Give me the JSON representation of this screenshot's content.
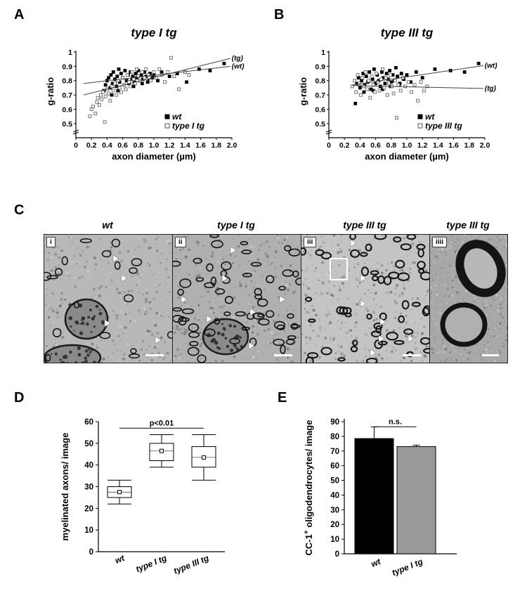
{
  "panels": {
    "A": "A",
    "B": "B",
    "C": "C",
    "D": "D",
    "E": "E"
  },
  "chart_data": [
    {
      "id": "A",
      "type": "scatter",
      "title": "type I tg",
      "xlabel": "axon diameter (µm)",
      "ylabel": "g-ratio",
      "xlim": [
        0,
        2.0
      ],
      "ylim": [
        0.45,
        1.0
      ],
      "xticks": [
        "0",
        "0.2",
        "0.4",
        "0.6",
        "0.8",
        "1.0",
        "1.2",
        "1.4",
        "1.6",
        "1.8",
        "2.0"
      ],
      "yticks": [
        "0.5",
        "0.6",
        "0.7",
        "0.8",
        "0.9",
        "1"
      ],
      "series": [
        {
          "name": "wt",
          "marker": "filled-square",
          "points": [
            [
              0.36,
              0.73
            ],
            [
              0.38,
              0.77
            ],
            [
              0.4,
              0.8
            ],
            [
              0.42,
              0.82
            ],
            [
              0.44,
              0.75
            ],
            [
              0.45,
              0.84
            ],
            [
              0.47,
              0.78
            ],
            [
              0.48,
              0.86
            ],
            [
              0.5,
              0.81
            ],
            [
              0.52,
              0.76
            ],
            [
              0.53,
              0.83
            ],
            [
              0.55,
              0.88
            ],
            [
              0.56,
              0.79
            ],
            [
              0.58,
              0.85
            ],
            [
              0.6,
              0.82
            ],
            [
              0.62,
              0.77
            ],
            [
              0.63,
              0.87
            ],
            [
              0.65,
              0.8
            ],
            [
              0.67,
              0.84
            ],
            [
              0.68,
              0.78
            ],
            [
              0.7,
              0.86
            ],
            [
              0.72,
              0.81
            ],
            [
              0.73,
              0.83
            ],
            [
              0.75,
              0.79
            ],
            [
              0.77,
              0.85
            ],
            [
              0.78,
              0.82
            ],
            [
              0.8,
              0.87
            ],
            [
              0.82,
              0.8
            ],
            [
              0.84,
              0.84
            ],
            [
              0.86,
              0.81
            ],
            [
              0.88,
              0.86
            ],
            [
              0.9,
              0.83
            ],
            [
              0.92,
              0.79
            ],
            [
              0.95,
              0.85
            ],
            [
              0.98,
              0.82
            ],
            [
              1.0,
              0.84
            ],
            [
              1.05,
              0.8
            ],
            [
              1.1,
              0.86
            ],
            [
              1.2,
              0.83
            ],
            [
              1.3,
              0.85
            ],
            [
              1.42,
              0.79
            ],
            [
              1.58,
              0.88
            ],
            [
              1.72,
              0.87
            ],
            [
              1.9,
              0.92
            ],
            [
              0.46,
              0.7
            ],
            [
              0.54,
              0.73
            ],
            [
              0.64,
              0.74
            ],
            [
              0.74,
              0.76
            ],
            [
              0.85,
              0.78
            ],
            [
              0.94,
              0.8
            ]
          ]
        },
        {
          "name": "type I tg",
          "marker": "open-square",
          "points": [
            [
              0.18,
              0.55
            ],
            [
              0.2,
              0.6
            ],
            [
              0.22,
              0.62
            ],
            [
              0.25,
              0.57
            ],
            [
              0.27,
              0.65
            ],
            [
              0.28,
              0.68
            ],
            [
              0.3,
              0.63
            ],
            [
              0.32,
              0.7
            ],
            [
              0.33,
              0.67
            ],
            [
              0.35,
              0.72
            ],
            [
              0.37,
              0.51
            ],
            [
              0.38,
              0.69
            ],
            [
              0.4,
              0.74
            ],
            [
              0.42,
              0.71
            ],
            [
              0.44,
              0.66
            ],
            [
              0.46,
              0.76
            ],
            [
              0.48,
              0.73
            ],
            [
              0.5,
              0.78
            ],
            [
              0.52,
              0.7
            ],
            [
              0.54,
              0.8
            ],
            [
              0.56,
              0.75
            ],
            [
              0.58,
              0.72
            ],
            [
              0.6,
              0.82
            ],
            [
              0.62,
              0.77
            ],
            [
              0.64,
              0.74
            ],
            [
              0.66,
              0.84
            ],
            [
              0.68,
              0.79
            ],
            [
              0.7,
              0.76
            ],
            [
              0.72,
              0.86
            ],
            [
              0.74,
              0.81
            ],
            [
              0.76,
              0.78
            ],
            [
              0.78,
              0.88
            ],
            [
              0.8,
              0.83
            ],
            [
              0.82,
              0.8
            ],
            [
              0.85,
              0.86
            ],
            [
              0.88,
              0.82
            ],
            [
              0.9,
              0.88
            ],
            [
              0.93,
              0.84
            ],
            [
              0.96,
              0.8
            ],
            [
              1.0,
              0.86
            ],
            [
              1.03,
              0.82
            ],
            [
              1.07,
              0.88
            ],
            [
              1.1,
              0.84
            ],
            [
              1.14,
              0.79
            ],
            [
              1.18,
              0.86
            ],
            [
              1.22,
              0.96
            ],
            [
              1.26,
              0.83
            ],
            [
              1.32,
              0.74
            ],
            [
              1.4,
              0.86
            ],
            [
              1.45,
              0.84
            ]
          ]
        }
      ],
      "fit_lines": [
        {
          "label": "(tg)",
          "from": [
            0.1,
            0.7
          ],
          "to": [
            1.98,
            0.955
          ]
        },
        {
          "label": "(wt)",
          "from": [
            0.1,
            0.78
          ],
          "to": [
            1.98,
            0.9
          ]
        }
      ],
      "legend": "bottom-right",
      "axis_break": true
    },
    {
      "id": "B",
      "type": "scatter",
      "title": "type III tg",
      "xlabel": "axon diameter (µm)",
      "ylabel": "g-ratio",
      "xlim": [
        0,
        2.0
      ],
      "ylim": [
        0.45,
        1.0
      ],
      "xticks": [
        "0",
        "0.2",
        "0.4",
        "0.6",
        "0.8",
        "1.0",
        "1.2",
        "1.4",
        "1.6",
        "1.8",
        "2.0"
      ],
      "yticks": [
        "0.5",
        "0.6",
        "0.7",
        "0.8",
        "0.9",
        "1"
      ],
      "series": [
        {
          "name": "wt",
          "marker": "filled-square",
          "points": [
            [
              0.34,
              0.64
            ],
            [
              0.36,
              0.78
            ],
            [
              0.38,
              0.82
            ],
            [
              0.4,
              0.75
            ],
            [
              0.42,
              0.8
            ],
            [
              0.44,
              0.85
            ],
            [
              0.46,
              0.77
            ],
            [
              0.48,
              0.83
            ],
            [
              0.5,
              0.79
            ],
            [
              0.52,
              0.86
            ],
            [
              0.54,
              0.74
            ],
            [
              0.56,
              0.81
            ],
            [
              0.58,
              0.88
            ],
            [
              0.6,
              0.78
            ],
            [
              0.62,
              0.84
            ],
            [
              0.64,
              0.8
            ],
            [
              0.66,
              0.76
            ],
            [
              0.68,
              0.86
            ],
            [
              0.7,
              0.82
            ],
            [
              0.72,
              0.78
            ],
            [
              0.74,
              0.85
            ],
            [
              0.76,
              0.81
            ],
            [
              0.78,
              0.87
            ],
            [
              0.8,
              0.79
            ],
            [
              0.82,
              0.84
            ],
            [
              0.84,
              0.8
            ],
            [
              0.86,
              0.89
            ],
            [
              0.88,
              0.83
            ],
            [
              0.9,
              0.77
            ],
            [
              0.93,
              0.85
            ],
            [
              0.96,
              0.81
            ],
            [
              1.0,
              0.84
            ],
            [
              1.05,
              0.79
            ],
            [
              1.12,
              0.86
            ],
            [
              1.2,
              0.82
            ],
            [
              1.36,
              0.88
            ],
            [
              1.56,
              0.87
            ],
            [
              1.74,
              0.86
            ],
            [
              1.92,
              0.92
            ],
            [
              0.45,
              0.72
            ],
            [
              0.57,
              0.73
            ],
            [
              0.69,
              0.74
            ],
            [
              0.79,
              0.76
            ],
            [
              0.91,
              0.78
            ]
          ]
        },
        {
          "name": "type III tg",
          "marker": "open-square",
          "points": [
            [
              0.3,
              0.76
            ],
            [
              0.33,
              0.8
            ],
            [
              0.35,
              0.72
            ],
            [
              0.37,
              0.84
            ],
            [
              0.39,
              0.78
            ],
            [
              0.41,
              0.7
            ],
            [
              0.43,
              0.82
            ],
            [
              0.45,
              0.76
            ],
            [
              0.47,
              0.86
            ],
            [
              0.49,
              0.74
            ],
            [
              0.51,
              0.8
            ],
            [
              0.53,
              0.68
            ],
            [
              0.55,
              0.83
            ],
            [
              0.57,
              0.77
            ],
            [
              0.59,
              0.72
            ],
            [
              0.61,
              0.85
            ],
            [
              0.63,
              0.79
            ],
            [
              0.65,
              0.73
            ],
            [
              0.67,
              0.81
            ],
            [
              0.69,
              0.88
            ],
            [
              0.71,
              0.75
            ],
            [
              0.73,
              0.82
            ],
            [
              0.75,
              0.7
            ],
            [
              0.77,
              0.78
            ],
            [
              0.79,
              0.84
            ],
            [
              0.81,
              0.76
            ],
            [
              0.83,
              0.71
            ],
            [
              0.85,
              0.8
            ],
            [
              0.87,
              0.54
            ],
            [
              0.89,
              0.77
            ],
            [
              0.92,
              0.73
            ],
            [
              0.95,
              0.82
            ],
            [
              0.98,
              0.76
            ],
            [
              1.02,
              0.79
            ],
            [
              1.06,
              0.72
            ],
            [
              1.1,
              0.77
            ],
            [
              1.14,
              0.66
            ],
            [
              1.18,
              0.79
            ],
            [
              1.22,
              0.73
            ],
            [
              1.26,
              0.76
            ]
          ]
        }
      ],
      "fit_lines": [
        {
          "label": "(wt)",
          "from": [
            0.3,
            0.77
          ],
          "to": [
            1.98,
            0.905
          ]
        },
        {
          "label": "(tg)",
          "from": [
            0.3,
            0.765
          ],
          "to": [
            1.98,
            0.745
          ]
        }
      ],
      "legend": "bottom-right",
      "axis_break": true
    },
    {
      "id": "D",
      "type": "box",
      "ylabel": "myelinated axons/ image",
      "ylim": [
        0,
        60
      ],
      "yticks": [
        "0",
        "10",
        "20",
        "30",
        "40",
        "50",
        "60"
      ],
      "categories": [
        "wt",
        "type I tg",
        "type III tg"
      ],
      "boxes": [
        {
          "whisker_low": 22,
          "q1": 25,
          "median": 27.5,
          "q3": 30,
          "whisker_high": 33,
          "mean": 27.5
        },
        {
          "whisker_low": 39,
          "q1": 42,
          "median": 46.5,
          "q3": 50,
          "whisker_high": 54,
          "mean": 46.5
        },
        {
          "whisker_low": 33,
          "q1": 39,
          "median": 43.5,
          "q3": 48.5,
          "whisker_high": 54,
          "mean": 43.5
        }
      ],
      "significance": {
        "text": "p<0.01",
        "from": 0,
        "to": 2
      }
    },
    {
      "id": "E",
      "type": "bar",
      "ylabel_main": "CC-1",
      "ylabel_sup": "+",
      "ylabel_rest": " oligodendrocytes/ image",
      "ylim": [
        0,
        90
      ],
      "yticks": [
        "0",
        "10",
        "20",
        "30",
        "40",
        "50",
        "60",
        "70",
        "80",
        "90"
      ],
      "categories": [
        "wt",
        "type I tg"
      ],
      "values": [
        78.5,
        73
      ],
      "errors": [
        8,
        1
      ],
      "colors": [
        "#000000",
        "#999999"
      ],
      "significance": {
        "text": "n.s."
      }
    }
  ],
  "panel_c": {
    "titles": [
      "wt",
      "type I tg",
      "type III tg",
      "type III tg"
    ],
    "sublabels": [
      "i",
      "ii",
      "iii",
      "iiii"
    ]
  }
}
